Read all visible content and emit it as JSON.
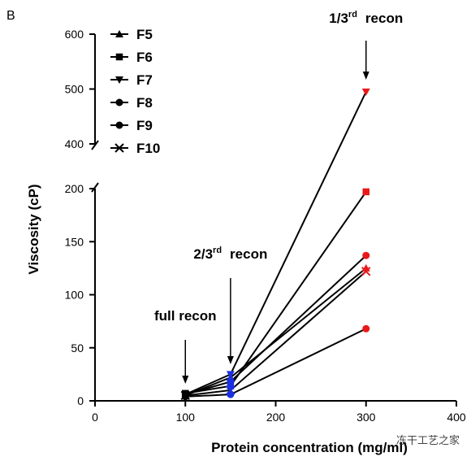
{
  "panel_label": "B",
  "watermark": "冻干工艺之家",
  "chart_data": {
    "type": "line",
    "xlabel": "Protein concentration (mg/ml)",
    "ylabel": "Viscosity (cP)",
    "xlim": [
      0,
      400
    ],
    "x_ticks": [
      0,
      100,
      200,
      300,
      400
    ],
    "y_axis_broken": true,
    "y_lower_range": [
      0,
      200
    ],
    "y_upper_range": [
      400,
      600
    ],
    "y_ticks_lower": [
      0,
      50,
      100,
      150,
      200
    ],
    "y_ticks_upper": [
      400,
      500,
      600
    ],
    "legend_position": "top-left",
    "x": [
      100,
      150,
      300
    ],
    "series": [
      {
        "name": "F5",
        "marker": "triangle-up",
        "values": [
          5,
          22,
          125
        ]
      },
      {
        "name": "F6",
        "marker": "square",
        "values": [
          7,
          14,
          197
        ]
      },
      {
        "name": "F7",
        "marker": "triangle-down",
        "values": [
          6,
          25,
          495
        ]
      },
      {
        "name": "F8",
        "marker": "circle",
        "values": [
          6,
          18,
          137
        ]
      },
      {
        "name": "F9",
        "marker": "circle",
        "values": [
          4,
          6,
          68
        ]
      },
      {
        "name": "F10",
        "marker": "x",
        "values": [
          5,
          10,
          122
        ]
      }
    ],
    "marker_colors": {
      "100": "#000000",
      "150": "#1a2fe0",
      "300": "#e8191a"
    },
    "annotations": [
      {
        "main": "full recon",
        "sup": "",
        "tail": "",
        "x": 100
      },
      {
        "main": "2/3",
        "sup": "rd",
        "tail": "recon",
        "x": 150
      },
      {
        "main": "1/3",
        "sup": "rd",
        "tail": "recon",
        "x": 300
      }
    ]
  }
}
